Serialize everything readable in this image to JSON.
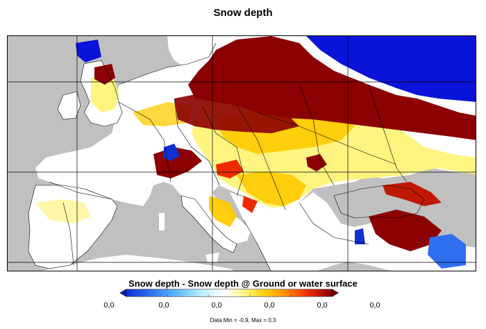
{
  "title": "Snow depth",
  "colorbar": {
    "title": "Snow depth - Snow depth @ Ground or water surface",
    "tick_labels": [
      "0,0",
      "0,0",
      "0,0",
      "0,0",
      "0,0",
      "0,0"
    ],
    "colors": [
      "#1030d0",
      "#2f6ff0",
      "#5ab4ff",
      "#b8ecff",
      "#ffffff",
      "#fff47a",
      "#ffcc00",
      "#ff8800",
      "#ee2a00",
      "#a00000",
      "#7a0000"
    ]
  },
  "footnote": "Data Min = -0,9, Max = 0,3",
  "map_colors": {
    "land": "#ffffff",
    "water": "#c0c0c0",
    "deep_snow": "#8b0000",
    "negative": "#0a14d8"
  }
}
